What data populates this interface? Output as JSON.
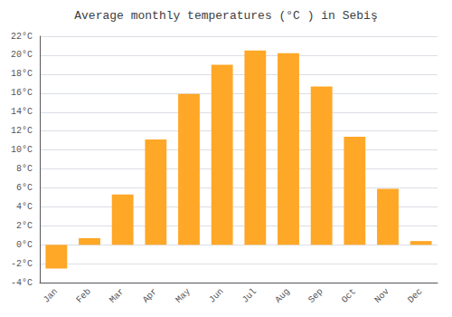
{
  "chart_data": {
    "type": "bar",
    "title": "Average monthly temperatures (°C ) in Sebiş",
    "categories": [
      "Jan",
      "Feb",
      "Mar",
      "Apr",
      "May",
      "Jun",
      "Jul",
      "Aug",
      "Sep",
      "Oct",
      "Nov",
      "Dec"
    ],
    "values": [
      -2.5,
      0.7,
      5.3,
      11.1,
      15.9,
      19.0,
      20.5,
      20.2,
      16.7,
      11.4,
      5.9,
      0.4
    ],
    "color": "#FFA726",
    "ylim": [
      -4,
      22
    ],
    "yticks": [
      {
        "value": -4,
        "label": "-4°C"
      },
      {
        "value": -2,
        "label": "-2°C"
      },
      {
        "value": 0,
        "label": "0°C"
      },
      {
        "value": 2,
        "label": "2°C"
      },
      {
        "value": 4,
        "label": "4°C"
      },
      {
        "value": 6,
        "label": "6°C"
      },
      {
        "value": 8,
        "label": "8°C"
      },
      {
        "value": 10,
        "label": "10°C"
      },
      {
        "value": 12,
        "label": "12°C"
      },
      {
        "value": 14,
        "label": "14°C"
      },
      {
        "value": 16,
        "label": "16°C"
      },
      {
        "value": 18,
        "label": "18°C"
      },
      {
        "value": 20,
        "label": "20°C"
      },
      {
        "value": 22,
        "label": "22°C"
      }
    ],
    "grid": true
  }
}
